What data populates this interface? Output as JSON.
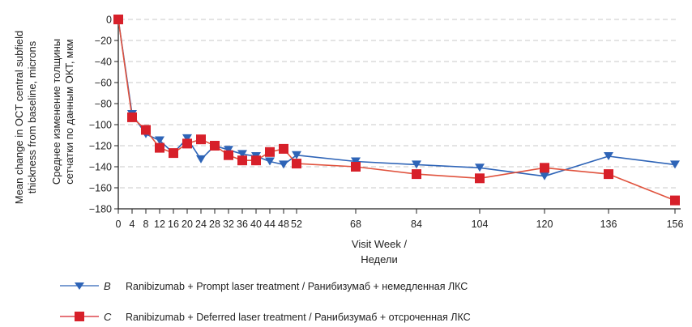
{
  "chart_data": {
    "type": "line",
    "title": "",
    "xlabel": [
      "Visit Week /",
      "Недели"
    ],
    "ylabel": [
      "Mean change in OCT central subfield",
      "thickness from baseline, microns",
      "Среднее изменение толщины",
      "сетчатки по данным ОКТ, мкм"
    ],
    "ylim": [
      -180,
      0
    ],
    "yticks": [
      0,
      -20,
      -40,
      -60,
      -80,
      -100,
      -120,
      -140,
      -160,
      -180
    ],
    "ytick_labels": [
      "0",
      "−20",
      "−40",
      "−60",
      "−80",
      "−100",
      "−120",
      "−140",
      "−160",
      "−180"
    ],
    "x": [
      0,
      4,
      8,
      12,
      16,
      20,
      24,
      28,
      32,
      36,
      40,
      44,
      48,
      52,
      68,
      84,
      104,
      120,
      136,
      156
    ],
    "xtick_labels": [
      "0",
      "4",
      "8",
      "12",
      "16",
      "20",
      "24",
      "28",
      "32",
      "36",
      "40",
      "44",
      "48",
      "52",
      "68",
      "84",
      "104",
      "120",
      "136",
      "156"
    ],
    "x_axis_scale": "categorical (weeks 0–52 evenly spaced, then wider spacing)",
    "grid": "horizontal dashed",
    "legend_position": "bottom",
    "series": [
      {
        "key": "B",
        "name": "Ranibizumab + Prompt laser treatment / Ранибизумаб + немедленная ЛКС",
        "marker": "triangle-down",
        "color": "#2e64b7",
        "values": [
          0,
          -90,
          -109,
          -115,
          -127,
          -113,
          -133,
          -120,
          -124,
          -128,
          -130,
          -135,
          -138,
          -129,
          -135,
          -138,
          -141,
          -149,
          -130,
          -138
        ]
      },
      {
        "key": "C",
        "name": "Ranibizumab + Deferred laser treatment / Ранибизумаб + отсроченная ЛКС",
        "marker": "square",
        "color": "#d7202a",
        "line_color": "#e0523d",
        "values": [
          0,
          -93,
          -105,
          -122,
          -127,
          -118,
          -114,
          -120,
          -129,
          -134,
          -134,
          -126,
          -123,
          -137,
          -140,
          -147,
          -151,
          -141,
          -147,
          -172
        ]
      }
    ]
  }
}
